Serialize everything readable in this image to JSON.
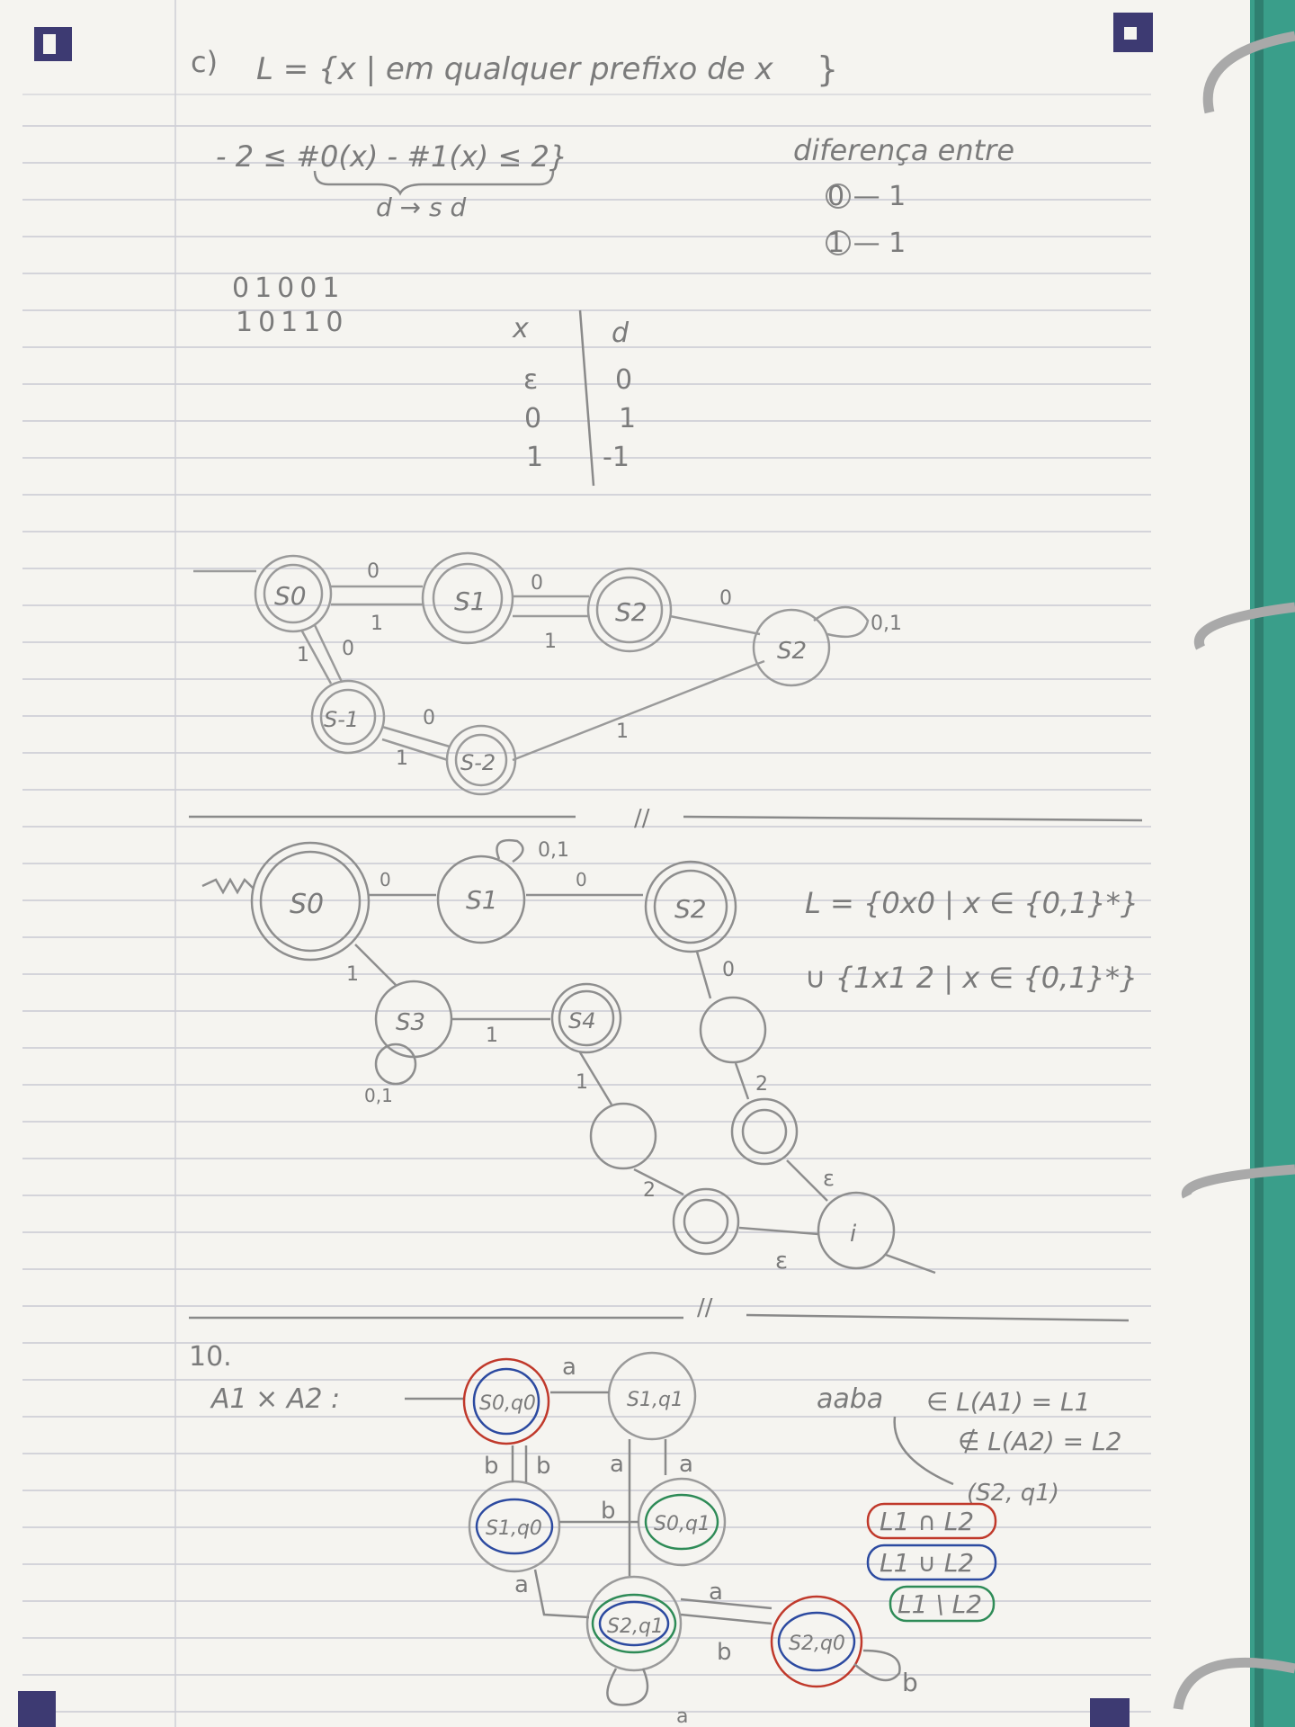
{
  "part_c": {
    "heading": "c)",
    "definition": "L = {x | em qualquer prefixo de x",
    "condition": "- 2 ≤ #0(x) - #1(x) ≤ 2}",
    "underbrace_note": "d → s d",
    "diferenca_label": "diferença entre",
    "diferenca_rows": [
      "0 — 1",
      "1 — 1"
    ],
    "examples": [
      "01001",
      "10110"
    ],
    "table": {
      "headers": [
        "x",
        "d"
      ],
      "rows": [
        [
          "ε",
          "0"
        ],
        [
          "0",
          "1"
        ],
        [
          "1",
          "-1"
        ]
      ]
    }
  },
  "diagram1": {
    "states": [
      "S0",
      "S1",
      "S2",
      "S2",
      "S-1",
      "S-2"
    ],
    "edges": [
      "0",
      "1",
      "0",
      "1",
      "0",
      "0,1",
      "1",
      "0",
      "0",
      "1",
      "1"
    ]
  },
  "separator1": "//",
  "diagram2": {
    "states": [
      "S0",
      "S1",
      "S2",
      "S3",
      "S4",
      "i"
    ],
    "edges": [
      "0",
      "0",
      "0,1",
      "1",
      "1",
      "0,1",
      "0",
      "1",
      "2",
      "2",
      "ε",
      "ε"
    ],
    "language_line1": "L = {0x0 | x ∈ {0,1}*}",
    "language_line2": "∪ {1x1 2 | x ∈ {0,1}*}"
  },
  "separator2": "//",
  "exercise10": {
    "number": "10.",
    "product_label": "A1 × A2 :",
    "states": [
      "S0,q0",
      "S1,q1",
      "S1,q0",
      "S0,q1",
      "S2,q1",
      "S2,q0"
    ],
    "edges": [
      "a",
      "b",
      "b",
      "a",
      "a",
      "b",
      "a",
      "a",
      "b",
      "a",
      "b"
    ],
    "note_word": "aaba",
    "note_in": "∈ L(A1) = L1",
    "note_notin": "∉ L(A2) = L2",
    "note_arrow": "(S2, q1)",
    "operations": [
      "L1 ∩ L2",
      "L1 ∪ L2",
      "L1 \\ L2"
    ],
    "colors": {
      "red": "#c0392b",
      "blue": "#2c4aa0",
      "green": "#2e8b57",
      "pencil": "#8a8a8a"
    }
  }
}
